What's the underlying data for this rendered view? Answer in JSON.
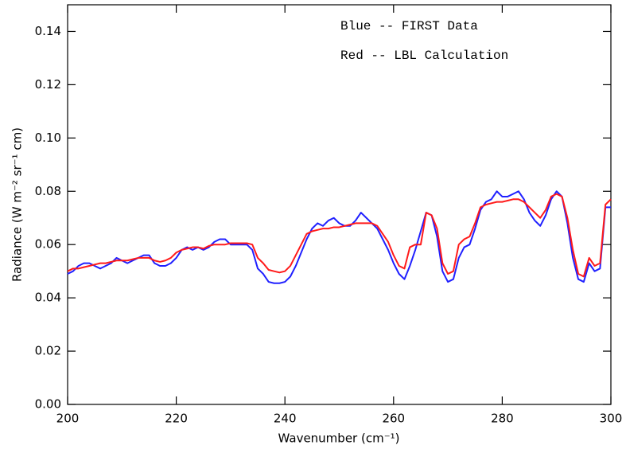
{
  "chart_data": {
    "type": "line",
    "xlabel": "Wavenumber (cm⁻¹)",
    "ylabel": "Radiance (W m⁻² sr⁻¹ cm)",
    "xlim": [
      200,
      300
    ],
    "xticks": [
      200,
      220,
      240,
      260,
      280,
      300
    ],
    "ylim": [
      0,
      0.15
    ],
    "yticks": [
      {
        "value": 0,
        "label": "0.00"
      },
      0.02,
      0.04,
      0.06,
      0.08,
      {
        "value": 0.1,
        "label": "0.10"
      },
      0.12,
      0.14
    ],
    "x": [
      200,
      201,
      202,
      203,
      204,
      205,
      206,
      207,
      208,
      209,
      210,
      211,
      212,
      213,
      214,
      215,
      216,
      217,
      218,
      219,
      220,
      221,
      222,
      223,
      224,
      225,
      226,
      227,
      228,
      229,
      230,
      231,
      232,
      233,
      234,
      235,
      236,
      237,
      238,
      239,
      240,
      241,
      242,
      243,
      244,
      245,
      246,
      247,
      248,
      249,
      250,
      251,
      252,
      253,
      254,
      255,
      256,
      257,
      258,
      259,
      260,
      261,
      262,
      263,
      264,
      265,
      266,
      267,
      268,
      269,
      270,
      271,
      272,
      273,
      274,
      275,
      276,
      277,
      278,
      279,
      280,
      281,
      282,
      283,
      284,
      285,
      286,
      287,
      288,
      289,
      290,
      291,
      292,
      293,
      294,
      295,
      296,
      297,
      298,
      299,
      300
    ],
    "series": [
      {
        "name": "Blue -- FIRST Data",
        "color": "#2020ff",
        "values": [
          0.049,
          0.05,
          0.052,
          0.053,
          0.053,
          0.052,
          0.051,
          0.052,
          0.053,
          0.055,
          0.054,
          0.053,
          0.054,
          0.055,
          0.056,
          0.056,
          0.053,
          0.052,
          0.052,
          0.053,
          0.055,
          0.058,
          0.059,
          0.058,
          0.059,
          0.058,
          0.059,
          0.061,
          0.062,
          0.062,
          0.06,
          0.06,
          0.06,
          0.06,
          0.058,
          0.051,
          0.049,
          0.046,
          0.0455,
          0.0455,
          0.046,
          0.048,
          0.052,
          0.057,
          0.062,
          0.066,
          0.068,
          0.067,
          0.069,
          0.07,
          0.068,
          0.067,
          0.067,
          0.069,
          0.072,
          0.07,
          0.068,
          0.066,
          0.062,
          0.058,
          0.053,
          0.049,
          0.047,
          0.052,
          0.058,
          0.065,
          0.072,
          0.071,
          0.063,
          0.05,
          0.046,
          0.047,
          0.055,
          0.059,
          0.06,
          0.066,
          0.073,
          0.076,
          0.077,
          0.08,
          0.078,
          0.078,
          0.079,
          0.08,
          0.077,
          0.072,
          0.069,
          0.067,
          0.071,
          0.077,
          0.08,
          0.078,
          0.068,
          0.055,
          0.047,
          0.046,
          0.053,
          0.05,
          0.051,
          0.074,
          0.074
        ]
      },
      {
        "name": "Red -- LBL Calculation",
        "color": "#ff1a1a",
        "values": [
          0.05,
          0.051,
          0.051,
          0.0515,
          0.052,
          0.0525,
          0.053,
          0.053,
          0.0535,
          0.054,
          0.054,
          0.054,
          0.0545,
          0.055,
          0.055,
          0.055,
          0.054,
          0.0535,
          0.054,
          0.055,
          0.057,
          0.058,
          0.0585,
          0.059,
          0.059,
          0.0585,
          0.0595,
          0.06,
          0.06,
          0.06,
          0.0605,
          0.0605,
          0.0605,
          0.0605,
          0.06,
          0.055,
          0.053,
          0.0505,
          0.05,
          0.0495,
          0.05,
          0.052,
          0.056,
          0.06,
          0.064,
          0.065,
          0.0655,
          0.066,
          0.066,
          0.0665,
          0.0665,
          0.067,
          0.0675,
          0.068,
          0.068,
          0.068,
          0.068,
          0.067,
          0.064,
          0.061,
          0.056,
          0.052,
          0.051,
          0.059,
          0.06,
          0.06,
          0.072,
          0.071,
          0.066,
          0.053,
          0.049,
          0.05,
          0.06,
          0.062,
          0.063,
          0.068,
          0.074,
          0.075,
          0.0755,
          0.076,
          0.076,
          0.0765,
          0.077,
          0.077,
          0.076,
          0.074,
          0.072,
          0.07,
          0.073,
          0.078,
          0.079,
          0.078,
          0.07,
          0.058,
          0.049,
          0.048,
          0.055,
          0.052,
          0.053,
          0.075,
          0.077
        ]
      }
    ]
  }
}
